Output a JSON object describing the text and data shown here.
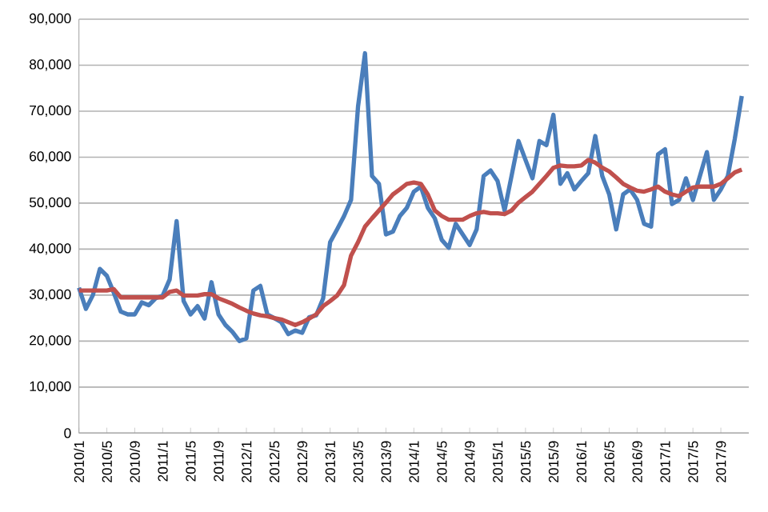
{
  "chart_data": {
    "type": "line",
    "categories": [
      "2010/1",
      null,
      null,
      null,
      "2010/5",
      null,
      null,
      null,
      "2010/9",
      null,
      null,
      null,
      "2011/1",
      null,
      null,
      null,
      "2011/5",
      null,
      null,
      null,
      "2011/9",
      null,
      null,
      null,
      "2012/1",
      null,
      null,
      null,
      "2012/5",
      null,
      null,
      null,
      "2012/9",
      null,
      null,
      null,
      "2013/1",
      null,
      null,
      null,
      "2013/5",
      null,
      null,
      null,
      "2013/9",
      null,
      null,
      null,
      "2014/1",
      null,
      null,
      null,
      "2014/5",
      null,
      null,
      null,
      "2014/9",
      null,
      null,
      null,
      "2015/1",
      null,
      null,
      null,
      "2015/5",
      null,
      null,
      null,
      "2015/9",
      null,
      null,
      null,
      "2016/1",
      null,
      null,
      null,
      "2016/5",
      null,
      null,
      null,
      "2016/9",
      null,
      null,
      null,
      "2017/1",
      null,
      null,
      null,
      "2017/5",
      null,
      null,
      null,
      "2017/9",
      null,
      null,
      null
    ],
    "series": [
      {
        "color": "#4a7ebb",
        "values": [
          31600,
          27000,
          30000,
          35700,
          34200,
          30500,
          26400,
          25800,
          25800,
          28400,
          27800,
          29300,
          29900,
          33400,
          46100,
          28700,
          25800,
          27600,
          24900,
          32800,
          25800,
          23500,
          22000,
          20000,
          20600,
          31000,
          32000,
          25800,
          25000,
          24100,
          21500,
          22300,
          21800,
          25200,
          25600,
          29300,
          41500,
          44300,
          47200,
          50700,
          71000,
          82600,
          55900,
          54200,
          43200,
          43800,
          47200,
          49000,
          52500,
          53600,
          49000,
          46700,
          42000,
          40300,
          45500,
          43200,
          40900,
          44300,
          55900,
          57100,
          54800,
          48400,
          55900,
          63500,
          59400,
          55400,
          63500,
          62600,
          69200,
          54200,
          56500,
          53000,
          54800,
          56500,
          64600,
          55900,
          51900,
          44300,
          51900,
          53000,
          50700,
          45500,
          44900,
          60600,
          61700,
          49800,
          50700,
          55400,
          50700,
          55900,
          61100,
          50700,
          53000,
          55900,
          64000,
          73300
        ]
      },
      {
        "color": "#c0504d",
        "values": [
          31000,
          31000,
          31000,
          31000,
          31000,
          31300,
          29500,
          29500,
          29500,
          29500,
          29500,
          29500,
          29500,
          30700,
          31000,
          29900,
          29900,
          29900,
          30200,
          30200,
          29300,
          28700,
          28100,
          27300,
          26600,
          26000,
          25600,
          25400,
          25000,
          24700,
          24100,
          23500,
          24100,
          24900,
          25800,
          27600,
          28700,
          29900,
          32200,
          38600,
          41500,
          44900,
          46700,
          48400,
          50100,
          51900,
          53000,
          54200,
          54500,
          54200,
          51900,
          48400,
          47200,
          46400,
          46400,
          46400,
          47200,
          47800,
          48100,
          47800,
          47800,
          47600,
          48400,
          50100,
          51300,
          52500,
          54200,
          55900,
          57700,
          58200,
          58000,
          58000,
          58200,
          59400,
          58800,
          57700,
          56900,
          55600,
          54200,
          53400,
          52700,
          52500,
          53000,
          53600,
          52500,
          51900,
          51500,
          52500,
          53400,
          53600,
          53600,
          53600,
          54200,
          55400,
          56700,
          57300
        ]
      }
    ],
    "ylim": [
      0,
      90000
    ],
    "yticks": [
      {
        "value": 0,
        "label": "0"
      },
      {
        "value": 10000,
        "label": "10,000"
      },
      {
        "value": 20000,
        "label": "20,000"
      },
      {
        "value": 30000,
        "label": "30,000"
      },
      {
        "value": 40000,
        "label": "40,000"
      },
      {
        "value": 50000,
        "label": "50,000"
      },
      {
        "value": 60000,
        "label": "60,000"
      },
      {
        "value": 70000,
        "label": "70,000"
      },
      {
        "value": 80000,
        "label": "80,000"
      },
      {
        "value": 90000,
        "label": "90,000"
      }
    ],
    "grid": "y"
  }
}
